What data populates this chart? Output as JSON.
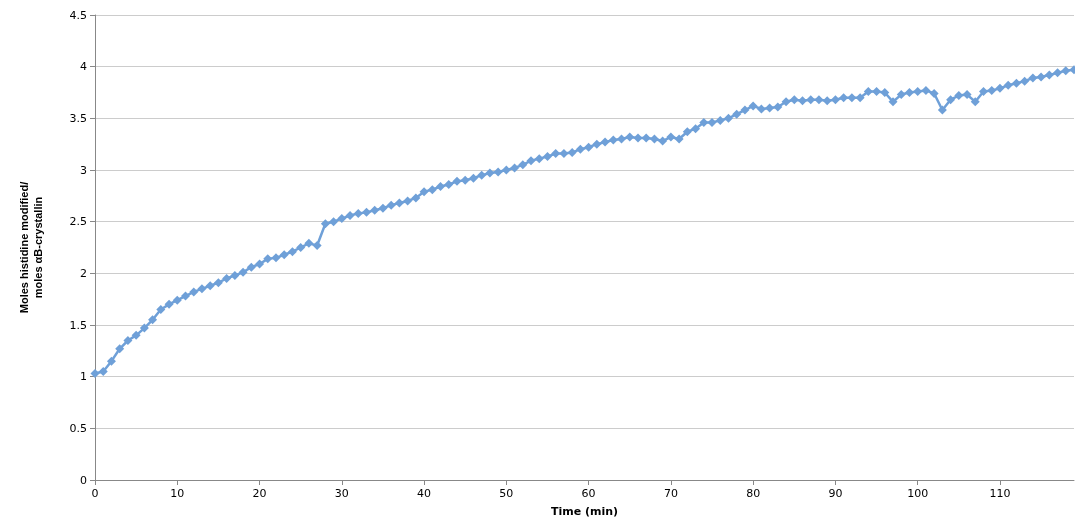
{
  "chart_data": {
    "type": "line",
    "xlabel": "Time (min)",
    "ylabel": "Moles histidine modified/\nmoles αB-crystallin",
    "x": [
      0,
      1,
      2,
      3,
      4,
      5,
      6,
      7,
      8,
      9,
      10,
      11,
      12,
      13,
      14,
      15,
      16,
      17,
      18,
      19,
      20,
      21,
      22,
      23,
      24,
      25,
      26,
      27,
      28,
      29,
      30,
      31,
      32,
      33,
      34,
      35,
      36,
      37,
      38,
      39,
      40,
      41,
      42,
      43,
      44,
      45,
      46,
      47,
      48,
      49,
      50,
      51,
      52,
      53,
      54,
      55,
      56,
      57,
      58,
      59,
      60,
      61,
      62,
      63,
      64,
      65,
      66,
      67,
      68,
      69,
      70,
      71,
      72,
      73,
      74,
      75,
      76,
      77,
      78,
      79,
      80,
      81,
      82,
      83,
      84,
      85,
      86,
      87,
      88,
      89,
      90,
      91,
      92,
      93,
      94,
      95,
      96,
      97,
      98,
      99,
      100,
      101,
      102,
      103,
      104,
      105,
      106,
      107,
      108,
      109,
      110,
      111,
      112,
      113,
      114,
      115,
      116,
      117,
      118,
      119
    ],
    "series": [
      {
        "color": "#6fa0d8",
        "values": [
          1.03,
          1.05,
          1.15,
          1.27,
          1.35,
          1.4,
          1.47,
          1.55,
          1.65,
          1.7,
          1.74,
          1.78,
          1.82,
          1.85,
          1.88,
          1.91,
          1.95,
          1.98,
          2.01,
          2.06,
          2.09,
          2.14,
          2.15,
          2.18,
          2.21,
          2.25,
          2.29,
          2.27,
          2.48,
          2.5,
          2.53,
          2.56,
          2.58,
          2.59,
          2.61,
          2.63,
          2.66,
          2.68,
          2.7,
          2.73,
          2.79,
          2.81,
          2.84,
          2.86,
          2.89,
          2.9,
          2.92,
          2.95,
          2.97,
          2.98,
          3.0,
          3.02,
          3.05,
          3.09,
          3.11,
          3.13,
          3.16,
          3.16,
          3.17,
          3.2,
          3.22,
          3.25,
          3.27,
          3.29,
          3.3,
          3.32,
          3.31,
          3.31,
          3.3,
          3.28,
          3.32,
          3.3,
          3.37,
          3.4,
          3.46,
          3.46,
          3.48,
          3.5,
          3.54,
          3.58,
          3.62,
          3.59,
          3.6,
          3.61,
          3.66,
          3.68,
          3.67,
          3.68,
          3.68,
          3.67,
          3.68,
          3.7,
          3.7,
          3.7,
          3.76,
          3.76,
          3.75,
          3.66,
          3.73,
          3.75,
          3.76,
          3.77,
          3.74,
          3.58,
          3.68,
          3.72,
          3.73,
          3.66,
          3.76,
          3.77,
          3.79,
          3.82,
          3.84,
          3.86,
          3.89,
          3.9,
          3.92,
          3.94,
          3.96,
          3.97
        ]
      }
    ],
    "xlim": [
      0,
      119
    ],
    "xticks": [
      0,
      10,
      20,
      30,
      40,
      50,
      60,
      70,
      80,
      90,
      100,
      110
    ],
    "ylim": [
      0,
      4.5
    ],
    "yticks": [
      0,
      0.5,
      1,
      1.5,
      2,
      2.5,
      3,
      3.5,
      4,
      4.5
    ],
    "grid": "y",
    "marker": "diamond",
    "line_style": "solid"
  }
}
